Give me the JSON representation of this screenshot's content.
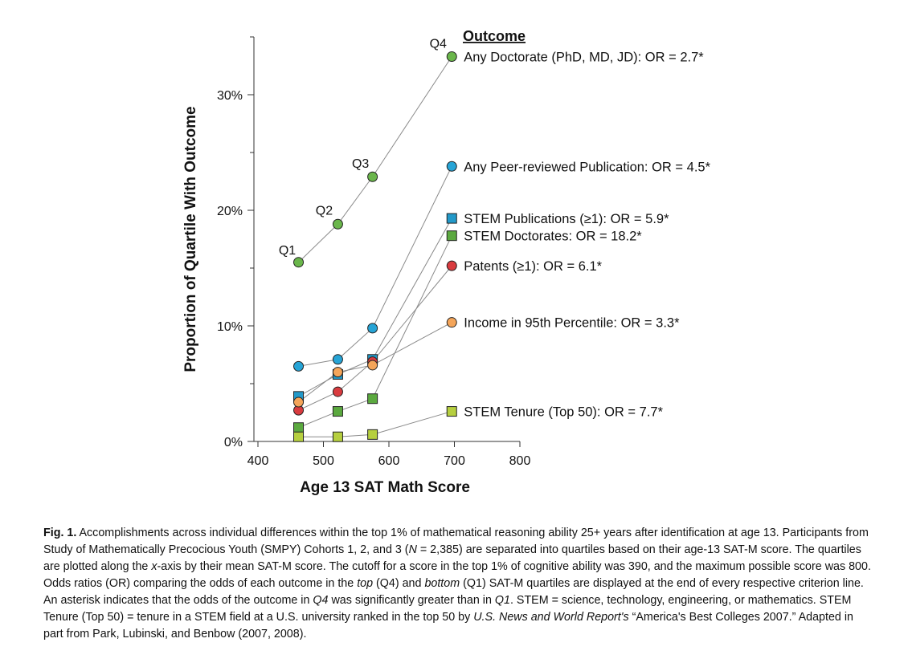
{
  "chart_data": {
    "type": "line",
    "ylabel": "Proportion of Quartile With Outcome",
    "xlabel": "Age 13 SAT Math Score",
    "xlim": [
      400,
      800
    ],
    "ylim": [
      0,
      35
    ],
    "x_ticks": [
      {
        "value": 400,
        "label": "400"
      },
      {
        "value": 500,
        "label": "500"
      },
      {
        "value": 600,
        "label": "600"
      },
      {
        "value": 700,
        "label": "700"
      },
      {
        "value": 800,
        "label": "800"
      }
    ],
    "y_ticks": [
      {
        "value": 0,
        "label": "0%"
      },
      {
        "value": 10,
        "label": "10%"
      },
      {
        "value": 20,
        "label": "20%"
      },
      {
        "value": 30,
        "label": "30%"
      }
    ],
    "y_minor_ticks": [
      5,
      15,
      25
    ],
    "legend_title": "Outcome",
    "quartile_labels": [
      {
        "label": "Q1",
        "x": 462,
        "y": 15.5
      },
      {
        "label": "Q2",
        "x": 522,
        "y": 18.8
      },
      {
        "label": "Q3",
        "x": 575,
        "y": 22.9
      },
      {
        "label": "Q4",
        "x": 696,
        "y": 33.3
      }
    ],
    "series": [
      {
        "name": "Any Doctorate  (PhD, MD, JD): OR = 2.7*",
        "marker": "circle",
        "color": "#6ab64b",
        "x": [
          462,
          522,
          575,
          696
        ],
        "values": [
          15.5,
          18.8,
          22.9,
          33.3
        ]
      },
      {
        "name": "Any Peer-reviewed Publication: OR = 4.5*",
        "marker": "circle",
        "color": "#26a4d6",
        "x": [
          462,
          522,
          575,
          696
        ],
        "values": [
          6.5,
          7.1,
          9.8,
          23.8
        ]
      },
      {
        "name": "STEM Publications (≥1): OR = 5.9*",
        "marker": "square",
        "color": "#2299c9",
        "x": [
          462,
          522,
          575,
          696
        ],
        "values": [
          3.9,
          5.8,
          7.1,
          19.3
        ]
      },
      {
        "name": "STEM Doctorates: OR = 18.2*",
        "marker": "square",
        "color": "#5ba93f",
        "x": [
          462,
          522,
          575,
          696
        ],
        "values": [
          1.2,
          2.6,
          3.7,
          17.8
        ]
      },
      {
        "name": "Patents (≥1): OR = 6.1*",
        "marker": "circle",
        "color": "#d93b3f",
        "x": [
          462,
          522,
          575,
          696
        ],
        "values": [
          2.7,
          4.3,
          6.9,
          15.2
        ]
      },
      {
        "name": "Income in 95th Percentile: OR = 3.3*",
        "marker": "circle",
        "color": "#f4a55a",
        "x": [
          462,
          522,
          575,
          696
        ],
        "values": [
          3.4,
          6.0,
          6.6,
          10.3
        ]
      },
      {
        "name": "STEM Tenure (Top 50): OR = 7.7*",
        "marker": "square",
        "color": "#b6cf3f",
        "x": [
          462,
          522,
          575,
          696
        ],
        "values": [
          0.4,
          0.4,
          0.6,
          2.6
        ]
      }
    ],
    "grid": false,
    "legend": "right of line ends"
  },
  "caption": {
    "fig_label": "Fig. 1.",
    "text_1": " Accomplishments across individual differences within the top 1% of mathematical reasoning ability 25+ years after identification at age 13. Participants from Study of Mathematically Precocious Youth (SMPY) Cohorts 1, 2, and 3 (",
    "n_var": "N",
    "text_2": " = 2,385) are separated into quartiles based on their age-13 SAT-M score. The quartiles are plotted along the ",
    "x_var": "x",
    "text_3": "-axis by their mean SAT-M score. The cutoff for a score in the top 1% of cognitive ability was 390, and the maximum possible score was 800. Odds ratios (OR) comparing the odds of each outcome in the ",
    "top": "top",
    "q4_a": " (Q4) and ",
    "bottom": "bottom",
    "q1_a": " (Q1) SAT-M quartiles are displayed at the end of every respective criterion line. An asterisk indicates that the odds of the outcome in ",
    "q4_b": "Q4",
    "text_4": " was significantly greater than in ",
    "q1_b": "Q1",
    "text_5": ". STEM = science, technology, engineering, or mathematics. STEM Tenure (Top 50) = tenure in a STEM field at a U.S. university ranked in the top 50 by ",
    "publication": "U.S. News and World Report's",
    "text_6": " “America's Best Colleges 2007.” Adapted in part from Park, Lubinski, and Benbow (2007, 2008)."
  }
}
